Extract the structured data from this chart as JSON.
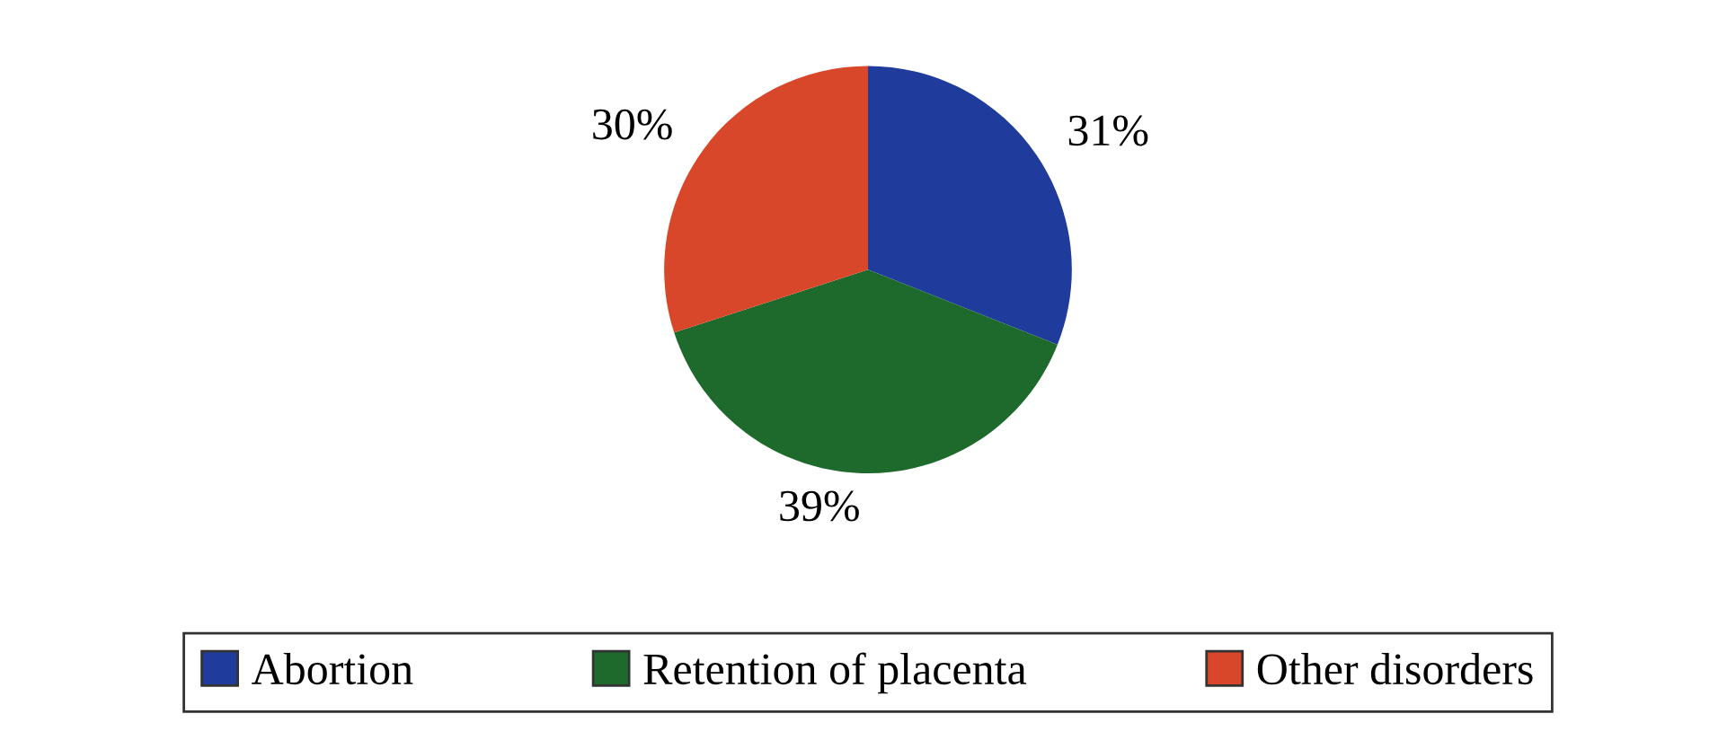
{
  "chart_data": {
    "type": "pie",
    "categories": [
      "Abortion",
      "Retention of placenta",
      "Other disorders"
    ],
    "values": [
      31,
      39,
      30
    ],
    "colors": [
      "#1f3c9c",
      "#1d6a2c",
      "#d9472b"
    ],
    "value_labels": [
      "31%",
      "39%",
      "30%"
    ],
    "legend": "bottom"
  }
}
